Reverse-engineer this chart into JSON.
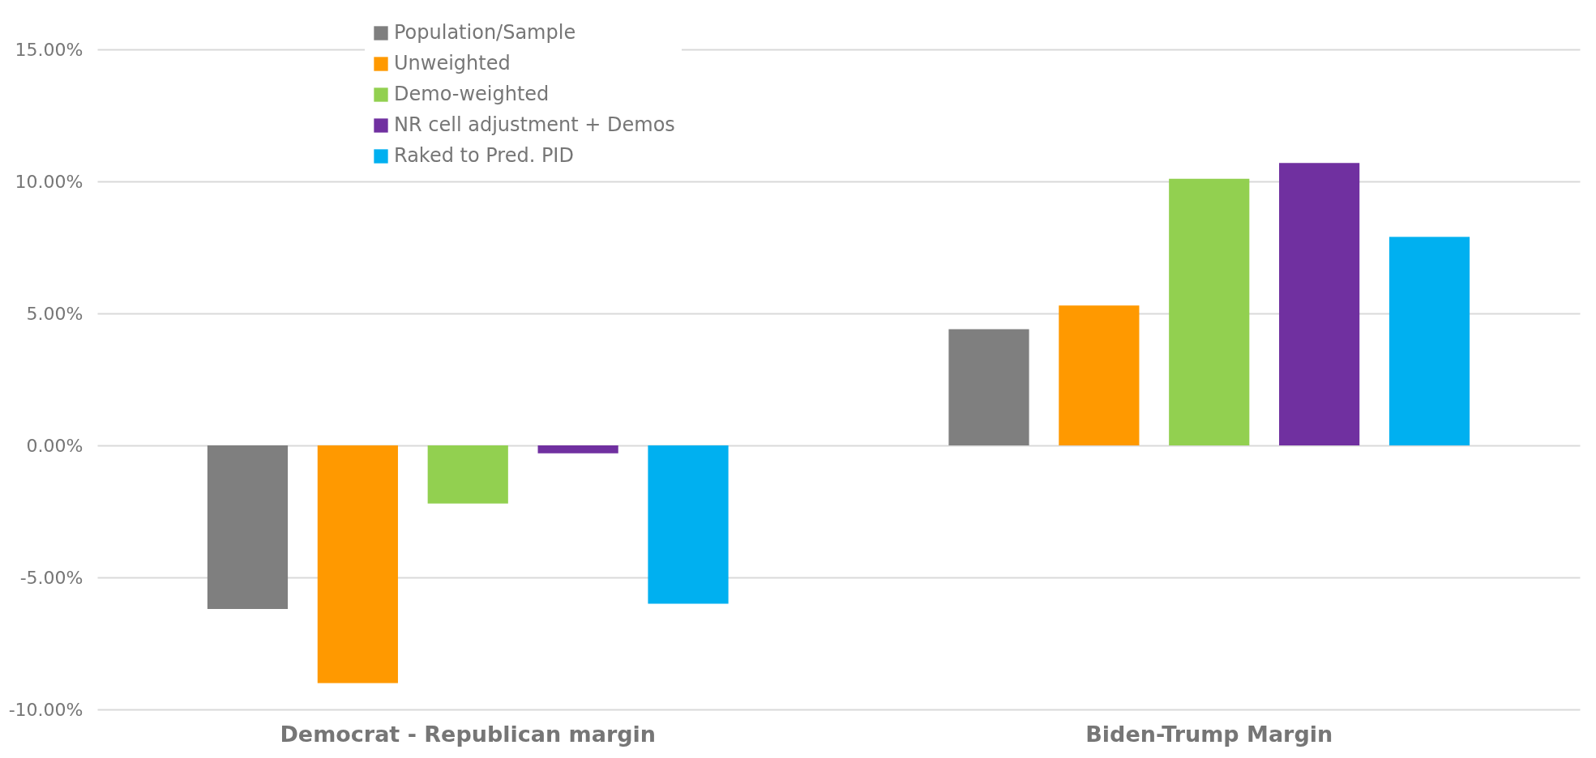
{
  "chart_data": {
    "type": "bar",
    "categories": [
      "Democrat - Republican margin",
      "Biden-Trump Margin"
    ],
    "series": [
      {
        "name": "Population/Sample",
        "color": "#7f7f7f",
        "values": [
          -6.2,
          4.4
        ]
      },
      {
        "name": "Unweighted",
        "color": "#ff9900",
        "values": [
          -9.0,
          5.3
        ]
      },
      {
        "name": "Demo-weighted",
        "color": "#92d050",
        "values": [
          -2.2,
          10.1
        ]
      },
      {
        "name": "NR cell adjustment + Demos",
        "color": "#7030a0",
        "values": [
          -0.3,
          10.7
        ]
      },
      {
        "name": "Raked to Pred. PID",
        "color": "#00b0f0",
        "values": [
          -6.0,
          7.9
        ]
      }
    ],
    "ylim": [
      -10,
      15
    ],
    "yticks": [
      {
        "value": -10,
        "label": "-10.00%"
      },
      {
        "value": -5,
        "label": "-5.00%"
      },
      {
        "value": 0,
        "label": "0.00%"
      },
      {
        "value": 5,
        "label": "5.00%"
      },
      {
        "value": 10,
        "label": "10.00%"
      },
      {
        "value": 15,
        "label": "15.00%"
      }
    ],
    "grid": "y",
    "legend": "top left"
  }
}
